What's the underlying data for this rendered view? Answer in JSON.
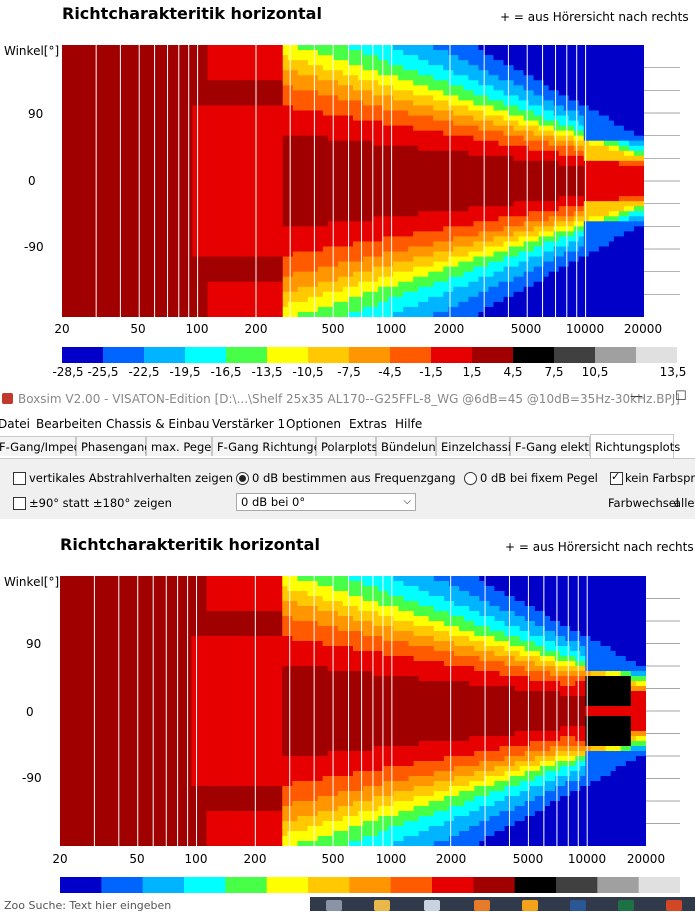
{
  "top_plot": {
    "title": "Richtcharakteritik horizontal",
    "note": "+ = aus Hörersicht nach rechts",
    "ylabel": "Winkel[°]",
    "yticks": [
      "90",
      "0",
      "-90"
    ],
    "xticks": [
      "20",
      "50",
      "100",
      "200",
      "500",
      "1000",
      "2000",
      "5000",
      "10000",
      "20000"
    ],
    "colorbar_ticks": [
      "-28,5",
      "-25,5",
      "-22,5",
      "-19,5",
      "-16,5",
      "-13,5",
      "-10,5",
      "-7,5",
      "-4,5",
      "-1,5",
      "1,5",
      "4,5",
      "7,5",
      "10,5",
      "13,5"
    ]
  },
  "colors": [
    "#0000c8",
    "#0064ff",
    "#00b4ff",
    "#00ffff",
    "#46ff46",
    "#ffff00",
    "#ffc800",
    "#ff9600",
    "#ff5a00",
    "#e60000",
    "#a00000",
    "#000000",
    "#404040",
    "#a0a0a0",
    "#e0e0e0"
  ],
  "window": {
    "title": "Boxsim V2.00 - VISATON-Edition [D:\\...\\Shelf 25x35 AL170--G25FFL-8_WG @6dB=45 @10dB=35Hz-30kHz.BPJ]",
    "minimize": "—",
    "maximize": "☐"
  },
  "menu": [
    "Datei",
    "Bearbeiten",
    "Chassis & Einbau",
    "Verstärker 1",
    "Optionen",
    "Extras",
    "Hilfe"
  ],
  "tabs": [
    "F-Gang/Imped.",
    "Phasengang",
    "max. Pegel",
    "F-Gang Richtungen",
    "Polarplots",
    "Bündelung",
    "Einzelchassis",
    "F-Gang elektr.",
    "Richtungsplots"
  ],
  "options": {
    "vertical": "vertikales Abstrahlverhalten zeigen",
    "ninety": "±90° statt ±180° zeigen",
    "radio_freq": "0 dB bestimmen aus Frequenzgang",
    "radio_fixed": "0 dB bei fixem Pegel",
    "select_value": "0 dB bei 0°",
    "kein_farbsprung": "kein Farbsprung",
    "farbwechsel": "Farbwechsel",
    "alle": "alle"
  },
  "bottom_plot": {
    "title": "Richtcharakteritik horizontal",
    "note": "+ = aus Hörersicht nach rechts",
    "ylabel": "Winkel[°]",
    "yticks": [
      "90",
      "0",
      "-90"
    ],
    "xticks": [
      "20",
      "50",
      "100",
      "200",
      "500",
      "1000",
      "2000",
      "5000",
      "10000",
      "20000"
    ]
  },
  "bottom_text": "Zoo Suche: Text hier eingeben"
}
